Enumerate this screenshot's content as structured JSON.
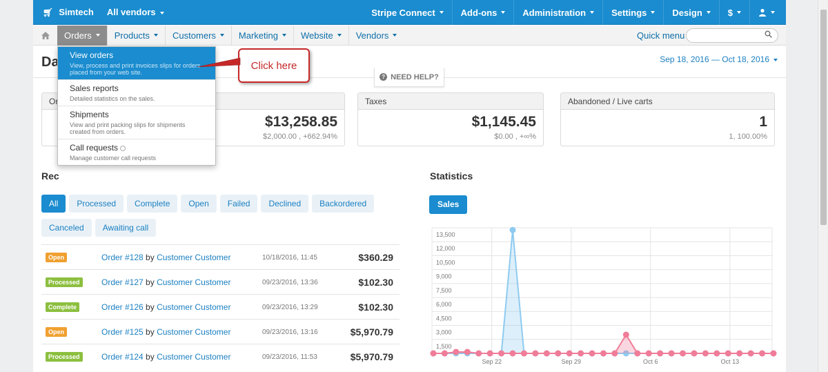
{
  "topbar": {
    "brand": "Simtech",
    "vendors": "All vendors",
    "nav": [
      "Stripe Connect",
      "Add-ons",
      "Administration",
      "Settings",
      "Design",
      "$",
      ""
    ]
  },
  "subnav": {
    "items": [
      "Orders",
      "Products",
      "Customers",
      "Marketing",
      "Website",
      "Vendors"
    ],
    "quick_menu": "Quick menu",
    "search_placeholder": ""
  },
  "page": {
    "title": "Da",
    "date_range": "Sep 18, 2016 — Oct 18, 2016",
    "need_help": "NEED HELP?"
  },
  "dropdown": [
    {
      "title": "View orders",
      "desc": "View, process and print invoices slips for orders placed from your web site."
    },
    {
      "title": "Sales reports",
      "desc": "Detailed statistics on the sales."
    },
    {
      "title": "Shipments",
      "desc": "View and print packing slips for shipments created from orders."
    },
    {
      "title": "Call requests",
      "desc": "Manage customer call requests"
    }
  ],
  "callout": {
    "text": "Click here"
  },
  "cards": [
    {
      "label": "Or",
      "value": "$13,258.85",
      "sub": "$2,000.00 , +662.94%"
    },
    {
      "label": "Taxes",
      "value": "$1,145.45",
      "sub": "$0.00 , +∞%"
    },
    {
      "label": "Abandoned / Live carts",
      "value": "1",
      "sub": "1, 100.00%"
    }
  ],
  "recent": {
    "title": "Rec",
    "filters": [
      "All",
      "Processed",
      "Complete",
      "Open",
      "Failed",
      "Declined",
      "Backordered",
      "Canceled",
      "Awaiting call"
    ],
    "orders": [
      {
        "status": "Open",
        "order": "Order #128",
        "by": "by",
        "customer": "Customer Customer",
        "date": "10/18/2016, 11:45",
        "amount": "$360.29"
      },
      {
        "status": "Processed",
        "order": "Order #127",
        "by": "by",
        "customer": "Customer Customer",
        "date": "09/23/2016, 13:36",
        "amount": "$102.30"
      },
      {
        "status": "Complete",
        "order": "Order #126",
        "by": "by",
        "customer": "Customer Customer",
        "date": "09/23/2016, 13:29",
        "amount": "$102.30"
      },
      {
        "status": "Open",
        "order": "Order #125",
        "by": "by",
        "customer": "Customer Customer",
        "date": "09/23/2016, 13:16",
        "amount": "$5,970.79"
      },
      {
        "status": "Processed",
        "order": "Order #124",
        "by": "by",
        "customer": "Customer Customer",
        "date": "09/23/2016, 11:53",
        "amount": "$5,970.79"
      }
    ]
  },
  "statistics": {
    "title": "Statistics",
    "tab": "Sales"
  },
  "chart_data": {
    "type": "area",
    "y_ticks": [
      "13,500",
      "12,000",
      "10,500",
      "9,000",
      "7,500",
      "6,000",
      "4,500",
      "3,000",
      "1,500"
    ],
    "x_ticks": [
      "Sep 22",
      "Sep 29",
      "Oct 6",
      "Oct 13"
    ],
    "ylim": [
      0,
      14000
    ],
    "x_count": 31,
    "series": [
      {
        "color": "#8ecbf0",
        "values": [
          0,
          0,
          0,
          0,
          0,
          0,
          0,
          13258,
          0,
          0,
          0,
          0,
          0,
          0,
          0,
          0,
          0,
          0,
          0,
          0,
          0,
          0,
          0,
          0,
          0,
          0,
          0,
          0,
          0,
          0,
          0
        ]
      },
      {
        "color": "#f07c98",
        "values": [
          0,
          0,
          150,
          150,
          0,
          0,
          0,
          0,
          0,
          0,
          0,
          0,
          0,
          0,
          0,
          0,
          0,
          2000,
          0,
          0,
          0,
          0,
          0,
          0,
          0,
          0,
          0,
          0,
          0,
          0,
          0
        ]
      }
    ],
    "grid": true
  }
}
